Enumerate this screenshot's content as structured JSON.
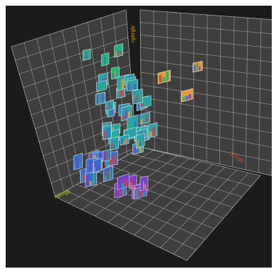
{
  "title": "",
  "colors": {
    "background": "#1b1b1b",
    "panel_fill": "#3e3e3e",
    "grid_line": "#e8e8e8",
    "x_axis_label": "#f0a800",
    "y_axis_label": "#d84a2a",
    "z_axis_label": "#b8d400",
    "thumb_green": "#22b47a",
    "thumb_teal": "#2aa0a8",
    "thumb_blue": "#3a6cc8",
    "thumb_purple": "#7a3ec8",
    "thumb_orange": "#e89a30",
    "thumb_red": "#d04040"
  },
  "axes": {
    "x_label": "rgbrgb",
    "y_label": "rgbrgb",
    "z_label": "rgbrgb"
  },
  "thumbnail_icon": "mini-bar-chart-thumbnail",
  "thumbnail_groups": [
    {
      "region": "top-left",
      "count": 4,
      "dominant_color": "thumb_green"
    },
    {
      "region": "upper-middle",
      "count": 16,
      "dominant_color": "thumb_teal"
    },
    {
      "region": "middle",
      "count": 18,
      "dominant_color": "thumb_teal"
    },
    {
      "region": "lower-left",
      "count": 12,
      "dominant_color": "thumb_blue"
    },
    {
      "region": "lower-middle",
      "count": 6,
      "dominant_color": "thumb_purple"
    },
    {
      "region": "right-wall",
      "count": 3,
      "dominant_color": "thumb_orange"
    }
  ]
}
